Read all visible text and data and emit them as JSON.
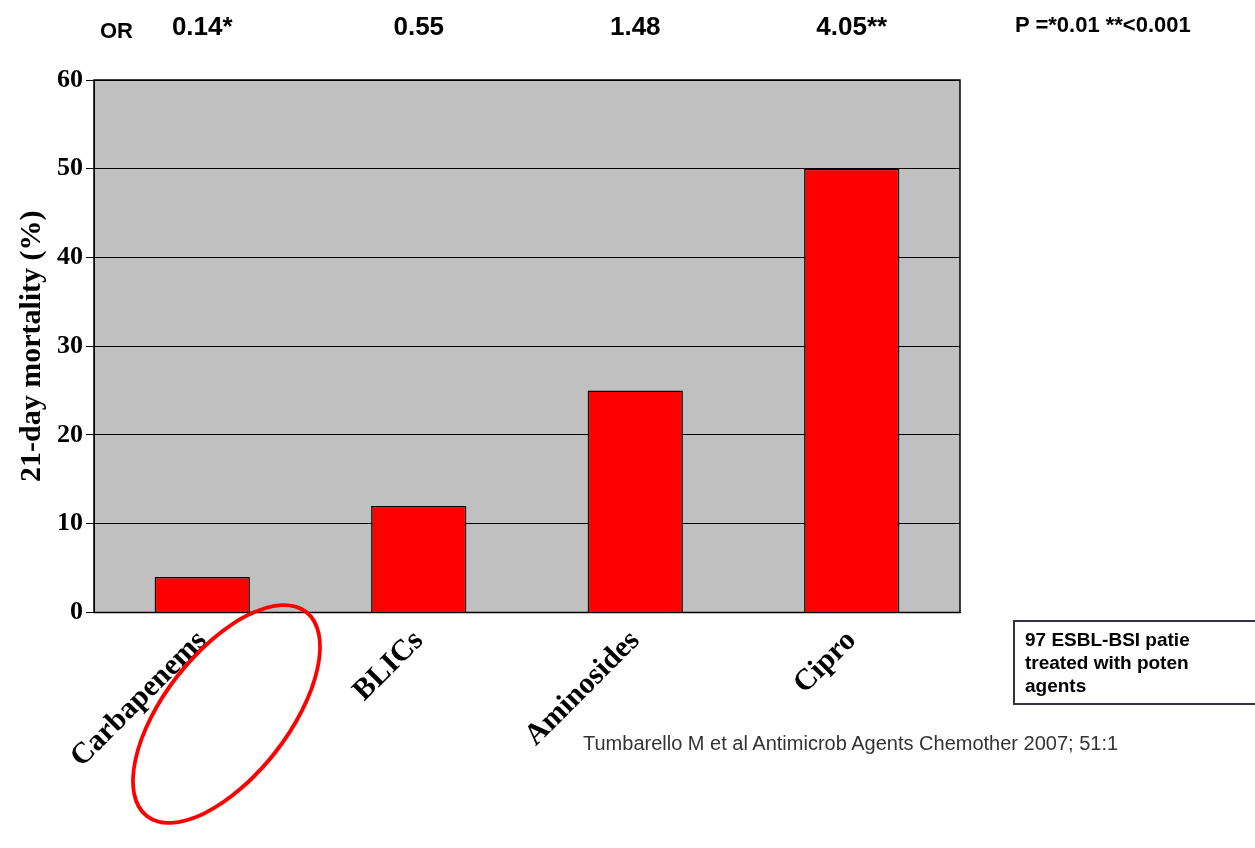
{
  "chart_data": {
    "type": "bar",
    "ylabel": "21-day mortality (%)",
    "categories": [
      "Carbapenems",
      "BLICs",
      "Aminosides",
      "Cipro"
    ],
    "values": [
      4,
      12,
      25,
      50
    ],
    "color": "#ff0000",
    "ylim": [
      0,
      60
    ],
    "yticks": [
      0,
      10,
      20,
      30,
      40,
      50,
      60
    ],
    "grid": "y",
    "legend": false,
    "annotations": [
      "OR",
      "0.14*",
      "0.55",
      "1.48",
      "4.05**",
      "P =*0.01 **<0.001",
      "97 ESBL-BSI patie\ntreated with poten\nagents",
      "Tumbarello M et al Antimicrob Agents Chemother 2007; 51:1"
    ]
  }
}
